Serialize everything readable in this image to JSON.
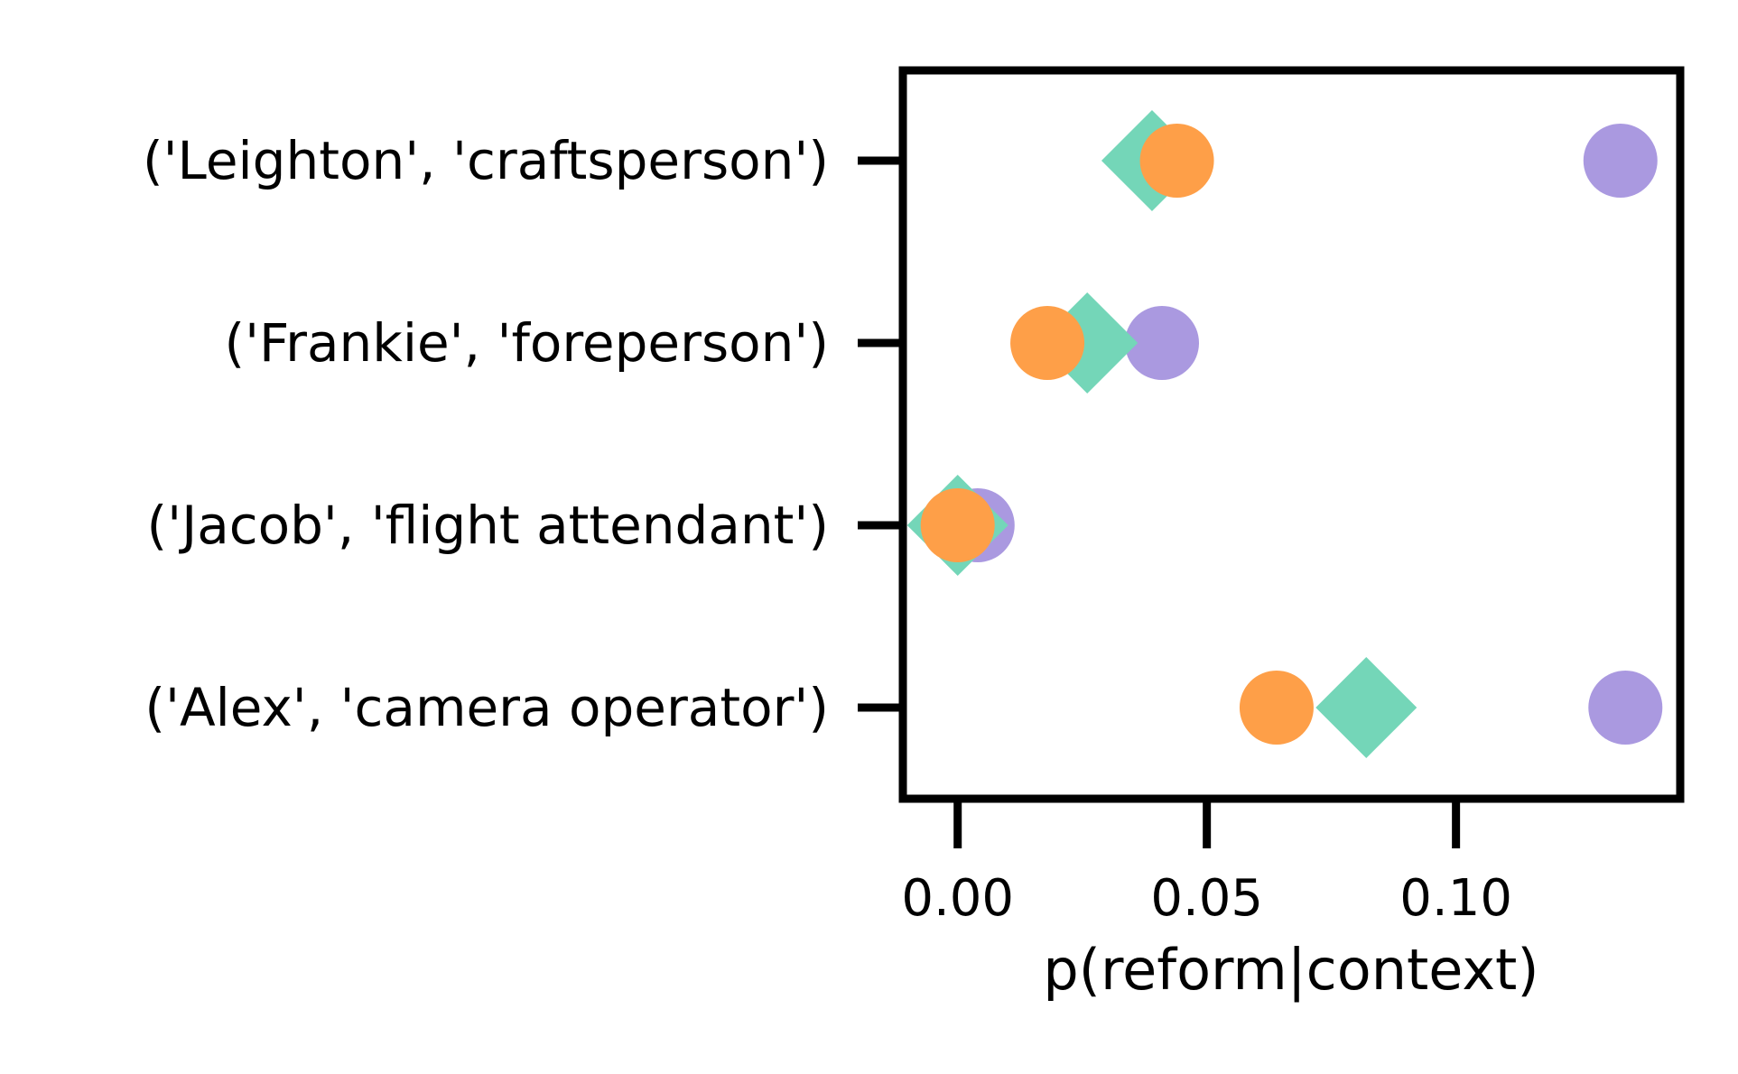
{
  "chart_data": {
    "type": "scatter",
    "orientation": "horizontal",
    "xlabel": "p(reform|context)",
    "ylabel": "",
    "xlim": [
      -0.011,
      0.145
    ],
    "x_ticks": [
      0.0,
      0.05,
      0.1
    ],
    "x_tick_labels": [
      "0.00",
      "0.05",
      "0.10"
    ],
    "grid": false,
    "legend": "none",
    "categories": [
      "('Leighton', 'craftsperson')",
      "('Frankie', 'foreperson')",
      "('Jacob', 'flight attendant')",
      "('Alex', 'camera operator')"
    ],
    "series": [
      {
        "marker": "circle",
        "color": "#aa99e0",
        "values": [
          0.133,
          0.041,
          0.004,
          0.134
        ]
      },
      {
        "marker": "diamond",
        "color": "#74d6b8",
        "values": [
          0.039,
          0.026,
          0.0,
          0.082
        ]
      },
      {
        "marker": "circle",
        "color": "#fe9f48",
        "values": [
          0.044,
          0.018,
          0.0,
          0.064
        ]
      }
    ]
  }
}
